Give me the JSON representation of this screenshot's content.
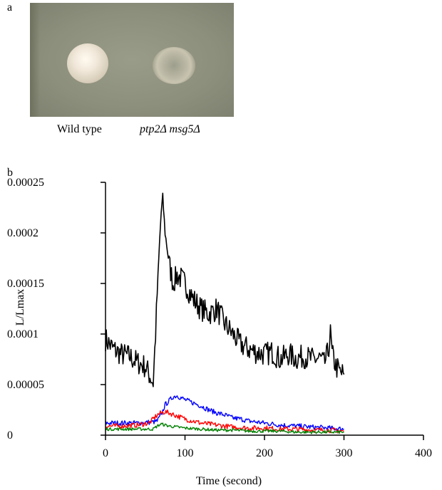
{
  "panel_labels": {
    "a": "a",
    "b": "b"
  },
  "photo": {
    "captions": {
      "wild_type": "Wild type",
      "mutant": "ptp2Δ msg5Δ"
    }
  },
  "chart_data": {
    "type": "line",
    "xlabel": "Time (second)",
    "ylabel": "L/Lmax",
    "xlim": [
      0,
      400
    ],
    "ylim": [
      0,
      0.00025
    ],
    "x_ticks": [
      0,
      100,
      200,
      300,
      400
    ],
    "y_ticks": [
      0,
      5e-05,
      0.0001,
      0.00015,
      0.0002,
      0.00025
    ],
    "x_tick_labels": [
      "0",
      "100",
      "200",
      "300",
      "400"
    ],
    "y_tick_labels": [
      "0",
      "0.00005",
      "0.0001",
      "0.00015",
      "0.0002",
      "0.00025"
    ],
    "grid": false,
    "series": [
      {
        "color": "#000000",
        "x": [
          0,
          10,
          20,
          30,
          40,
          50,
          55,
          60,
          63,
          65,
          68,
          70,
          72,
          75,
          80,
          85,
          90,
          95,
          100,
          110,
          120,
          130,
          140,
          150,
          160,
          170,
          180,
          190,
          200,
          210,
          220,
          230,
          240,
          250,
          260,
          270,
          275,
          280,
          283,
          285,
          290,
          295,
          300
        ],
        "y": [
          9.5e-05,
          8.5e-05,
          8e-05,
          7.8e-05,
          7.2e-05,
          6.8e-05,
          6e-05,
          5.2e-05,
          0.0001,
          0.00014,
          0.00019,
          0.00022,
          0.000235,
          0.0002,
          0.00017,
          0.00015,
          0.000158,
          0.000155,
          0.00015,
          0.000135,
          0.000125,
          0.00012,
          0.000125,
          0.00011,
          0.0001,
          9e-05,
          8.5e-05,
          8.2e-05,
          8e-05,
          8.2e-05,
          7.5e-05,
          8e-05,
          7.6e-05,
          7.8e-05,
          7.5e-05,
          7.6e-05,
          7e-05,
          8.2e-05,
          0.0001,
          8e-05,
          6.8e-05,
          6.2e-05,
          6e-05
        ]
      },
      {
        "color": "#0000ff",
        "x": [
          0,
          20,
          40,
          60,
          65,
          70,
          75,
          80,
          85,
          90,
          95,
          100,
          110,
          120,
          130,
          140,
          150,
          160,
          170,
          180,
          190,
          200,
          220,
          240,
          260,
          280,
          300
        ],
        "y": [
          1.2e-05,
          1.2e-05,
          1.2e-05,
          1.3e-05,
          1.4e-05,
          2e-05,
          3e-05,
          3.4e-05,
          3.8e-05,
          3.9e-05,
          3.7e-05,
          3.5e-05,
          3.2e-05,
          2.9e-05,
          2.5e-05,
          2.2e-05,
          2e-05,
          1.7e-05,
          1.6e-05,
          1.4e-05,
          1.3e-05,
          1.2e-05,
          1e-05,
          9e-06,
          8e-06,
          7e-06,
          6e-06
        ]
      },
      {
        "color": "#ff0000",
        "x": [
          0,
          20,
          40,
          55,
          60,
          65,
          70,
          75,
          80,
          90,
          100,
          110,
          120,
          140,
          160,
          180,
          200,
          220,
          240,
          260,
          280,
          300
        ],
        "y": [
          9e-06,
          9e-06,
          1e-05,
          1.2e-05,
          1.6e-05,
          2e-05,
          2.2e-05,
          2.3e-05,
          2.2e-05,
          1.9e-05,
          1.6e-05,
          1.4e-05,
          1.2e-05,
          1e-05,
          8e-06,
          7e-06,
          7e-06,
          6e-06,
          6e-06,
          5e-06,
          5e-06,
          4e-06
        ]
      },
      {
        "color": "#008000",
        "x": [
          0,
          20,
          40,
          60,
          65,
          70,
          75,
          80,
          90,
          100,
          120,
          140,
          160,
          180,
          200,
          220,
          240,
          260,
          280,
          300
        ],
        "y": [
          6e-06,
          6e-06,
          6e-06,
          6e-06,
          9e-06,
          1.1e-05,
          1e-05,
          9e-06,
          8e-06,
          7e-06,
          6e-06,
          5e-06,
          5e-06,
          4e-06,
          4e-06,
          4e-06,
          3e-06,
          3e-06,
          3e-06,
          3e-06
        ]
      }
    ]
  }
}
